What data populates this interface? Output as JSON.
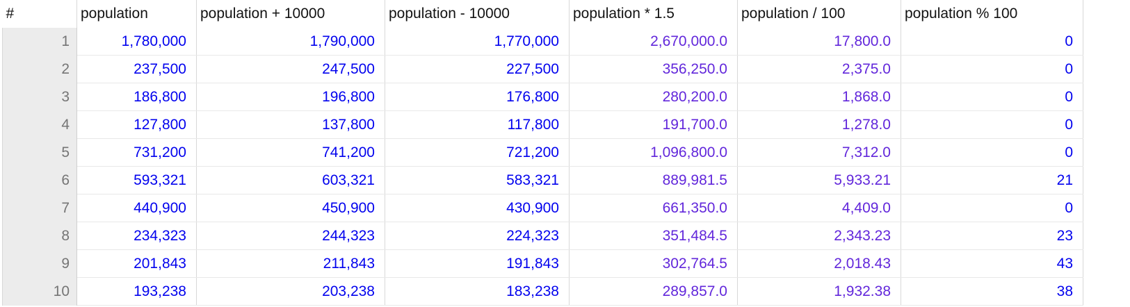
{
  "grid": {
    "corner_header": "#",
    "columns": [
      {
        "key": "population",
        "label": "population",
        "type": "int"
      },
      {
        "key": "population-plus-10000",
        "label": "population + 10000",
        "type": "int"
      },
      {
        "key": "population-minus-10000",
        "label": "population - 10000",
        "type": "int"
      },
      {
        "key": "population-times-1-5",
        "label": "population * 1.5",
        "type": "float"
      },
      {
        "key": "population-div-100",
        "label": "population / 100",
        "type": "float"
      },
      {
        "key": "population-mod-100",
        "label": "population % 100",
        "type": "int"
      }
    ],
    "rows": [
      {
        "index": "1",
        "values": [
          "1,780,000",
          "1,790,000",
          "1,770,000",
          "2,670,000.0",
          "17,800.0",
          "0"
        ]
      },
      {
        "index": "2",
        "values": [
          "237,500",
          "247,500",
          "227,500",
          "356,250.0",
          "2,375.0",
          "0"
        ]
      },
      {
        "index": "3",
        "values": [
          "186,800",
          "196,800",
          "176,800",
          "280,200.0",
          "1,868.0",
          "0"
        ]
      },
      {
        "index": "4",
        "values": [
          "127,800",
          "137,800",
          "117,800",
          "191,700.0",
          "1,278.0",
          "0"
        ]
      },
      {
        "index": "5",
        "values": [
          "731,200",
          "741,200",
          "721,200",
          "1,096,800.0",
          "7,312.0",
          "0"
        ]
      },
      {
        "index": "6",
        "values": [
          "593,321",
          "603,321",
          "583,321",
          "889,981.5",
          "5,933.21",
          "21"
        ]
      },
      {
        "index": "7",
        "values": [
          "440,900",
          "450,900",
          "430,900",
          "661,350.0",
          "4,409.0",
          "0"
        ]
      },
      {
        "index": "8",
        "values": [
          "234,323",
          "244,323",
          "224,323",
          "351,484.5",
          "2,343.23",
          "23"
        ]
      },
      {
        "index": "9",
        "values": [
          "201,843",
          "211,843",
          "191,843",
          "302,764.5",
          "2,018.43",
          "43"
        ]
      },
      {
        "index": "10",
        "values": [
          "193,238",
          "203,238",
          "183,238",
          "289,857.0",
          "1,932.38",
          "38"
        ]
      }
    ]
  },
  "colors": {
    "int_value": "#0202ee",
    "float_value": "#6227db",
    "header_text": "#121212",
    "row_number_text": "#757575",
    "row_number_bg": "#ececec",
    "grid_line_vertical": "#d8d8d8",
    "grid_line_horizontal": "#e8e8e8"
  }
}
